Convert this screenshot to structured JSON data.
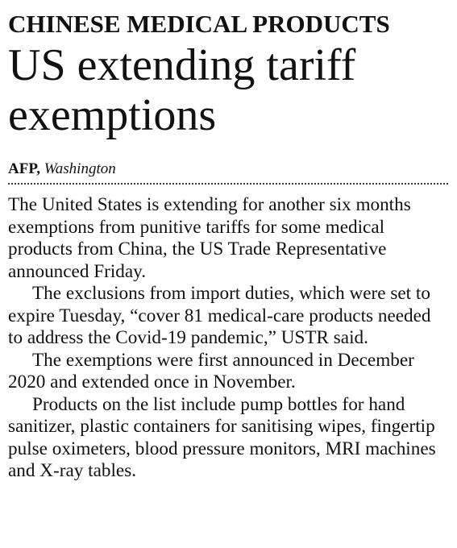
{
  "article": {
    "kicker": "CHINESE MEDICAL PRODUCTS",
    "headline_line1": "US extending tariff",
    "headline_line2": "exemptions",
    "byline": {
      "agency": "AFP,",
      "place": "Washington"
    },
    "paragraphs": [
      "The United States is extending for another six months exemptions from punitive tariffs for some medical products from China, the US Trade Representative announced Friday.",
      "The exclusions from import duties, which were set to expire Tuesday,  “cover 81 medical-care products needed to address the Covid-19 pandemic,” USTR said.",
      "The exemptions were first announced in December 2020 and extended once in November.",
      "Products on the list include pump bottles for hand sanitizer, plastic containers for sanitising wipes, fingertip pulse oximeters, blood pressure monitors, MRI machines and X-ray tables."
    ]
  }
}
